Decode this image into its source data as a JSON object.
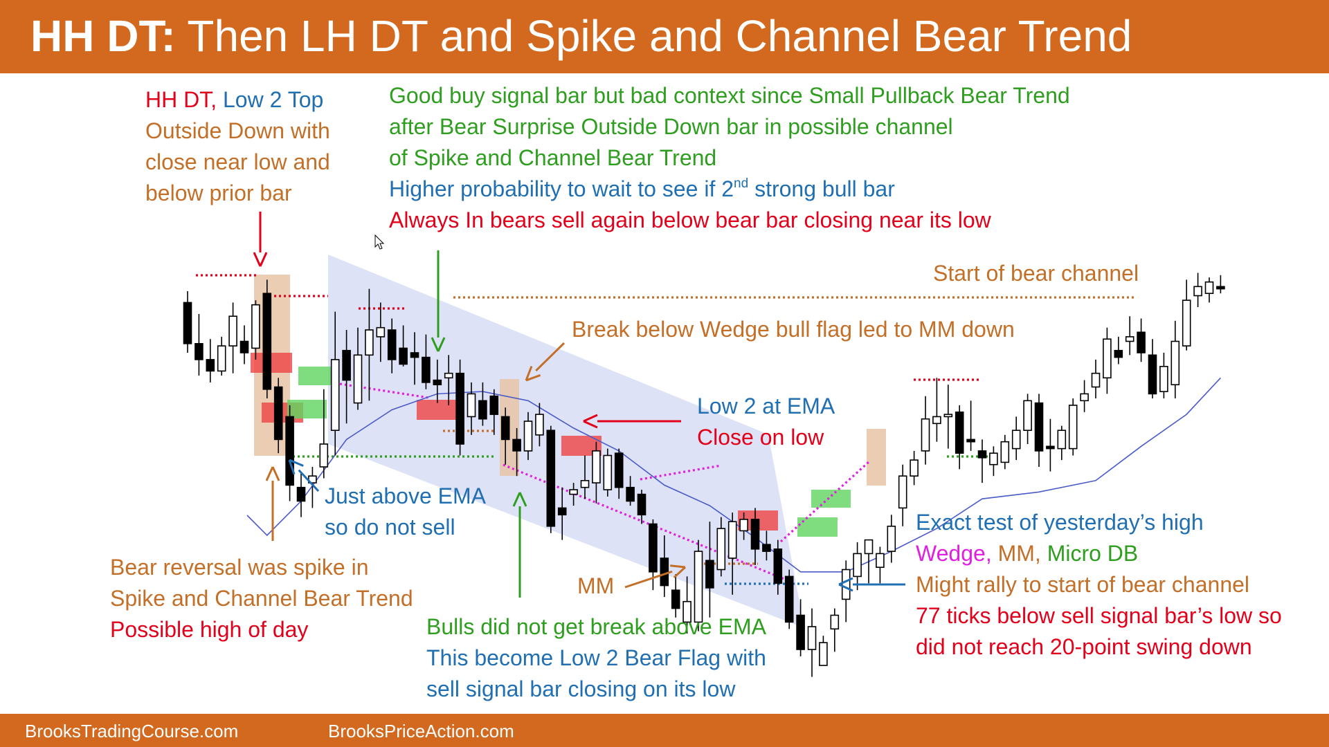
{
  "colors": {
    "header": "#D2691E",
    "footer": "#D2691E",
    "red": "#E3001B",
    "blue": "#1F6FB2",
    "green": "#2E9E1F",
    "orange": "#C46F27",
    "magenta": "#E020E0",
    "ema": "#4A5BC9",
    "channel_fill": "#C8CEF0",
    "bull_box": "#5FD45F",
    "bear_box": "#EE4444",
    "signal_box": "#E8C4A6"
  },
  "header": {
    "title_bold": "HH DT:",
    "title_rest": " Then LH DT and Spike and Channel Bear Trend"
  },
  "footer": {
    "left": "BrooksTradingCourse.com",
    "right": "BrooksPriceAction.com"
  },
  "annotations": {
    "hh_dt": {
      "part1": "HH DT, ",
      "part2": "Low 2 Top",
      "line2": "Outside Down with",
      "line3": "close near low and",
      "line4": "below prior bar"
    },
    "good_buy": {
      "line1": "Good buy signal bar but bad context since Small Pullback Bear Trend",
      "line2": "after Bear Surprise Outside Down bar in possible channel",
      "line3": "of Spike and Channel Bear Trend",
      "line4_pre": "Higher probability to wait to see if 2",
      "line4_sup": "nd",
      "line4_post": " strong bull bar",
      "line5": "Always In bears sell again below bear bar closing near its low"
    },
    "start_bear_channel": "Start of bear channel",
    "break_wedge": "Break below Wedge bull flag led to MM down",
    "low2_ema": {
      "line1": "Low 2 at EMA",
      "line2": "Close on low"
    },
    "just_above": {
      "line1": "Just above EMA",
      "line2": "so do not sell"
    },
    "bear_reversal": {
      "line1": "Bear reversal was spike in",
      "line2": "Spike and Channel Bear Trend",
      "line3": "Possible high of day"
    },
    "mm": "MM",
    "bulls_did_not": {
      "line1": "Bulls did not get break above EMA",
      "line2": "This become Low 2 Bear Flag with",
      "line3": "sell signal bar closing on its low"
    },
    "exact_test": {
      "line1": "Exact test of yesterday’s high",
      "line2a": "Wedge, ",
      "line2b": "MM, ",
      "line2c": "Micro DB",
      "line3": "Might rally to start of bear channel",
      "line4": "77 ticks below sell signal bar’s low so",
      "line5": "did not reach 20-point swing down"
    }
  },
  "chart_data": {
    "type": "candlestick",
    "description_series": "OHLC bars, price units arbitrary (higher value = higher price)",
    "bars": [
      {
        "o": 122,
        "h": 127,
        "l": 100,
        "c": 104
      },
      {
        "o": 104,
        "h": 117,
        "l": 90,
        "c": 97
      },
      {
        "o": 97,
        "h": 106,
        "l": 87,
        "c": 92
      },
      {
        "o": 92,
        "h": 107,
        "l": 90,
        "c": 103
      },
      {
        "o": 103,
        "h": 122,
        "l": 91,
        "c": 116
      },
      {
        "o": 105,
        "h": 112,
        "l": 95,
        "c": 100
      },
      {
        "o": 102,
        "h": 123,
        "l": 97,
        "c": 121
      },
      {
        "o": 126,
        "h": 132,
        "l": 80,
        "c": 84
      },
      {
        "o": 85,
        "h": 89,
        "l": 56,
        "c": 62
      },
      {
        "o": 72,
        "h": 77,
        "l": 35,
        "c": 42
      },
      {
        "o": 41,
        "h": 47,
        "l": 28,
        "c": 35
      },
      {
        "o": 43,
        "h": 50,
        "l": 32,
        "c": 46
      },
      {
        "o": 50,
        "h": 84,
        "l": 45,
        "c": 60
      },
      {
        "o": 66,
        "h": 118,
        "l": 55,
        "c": 97
      },
      {
        "o": 101,
        "h": 110,
        "l": 69,
        "c": 88
      },
      {
        "o": 78,
        "h": 111,
        "l": 75,
        "c": 99
      },
      {
        "o": 99,
        "h": 128,
        "l": 79,
        "c": 110
      },
      {
        "o": 107,
        "h": 122,
        "l": 96,
        "c": 111
      },
      {
        "o": 110,
        "h": 115,
        "l": 91,
        "c": 97
      },
      {
        "o": 102,
        "h": 112,
        "l": 94,
        "c": 95
      },
      {
        "o": 100,
        "h": 109,
        "l": 86,
        "c": 98
      },
      {
        "o": 98,
        "h": 108,
        "l": 84,
        "c": 87
      },
      {
        "o": 88,
        "h": 97,
        "l": 78,
        "c": 86
      },
      {
        "o": 89,
        "h": 99,
        "l": 77,
        "c": 91
      },
      {
        "o": 91,
        "h": 97,
        "l": 55,
        "c": 60
      },
      {
        "o": 72,
        "h": 87,
        "l": 64,
        "c": 82
      },
      {
        "o": 79,
        "h": 87,
        "l": 68,
        "c": 71
      },
      {
        "o": 81,
        "h": 84,
        "l": 64,
        "c": 73
      },
      {
        "o": 72,
        "h": 76,
        "l": 51,
        "c": 62
      },
      {
        "o": 62,
        "h": 67,
        "l": 46,
        "c": 57
      },
      {
        "o": 57,
        "h": 74,
        "l": 53,
        "c": 70
      },
      {
        "o": 64,
        "h": 78,
        "l": 59,
        "c": 73
      },
      {
        "o": 66,
        "h": 68,
        "l": 21,
        "c": 24
      },
      {
        "o": 32,
        "h": 41,
        "l": 18,
        "c": 29
      },
      {
        "o": 38,
        "h": 43,
        "l": 33,
        "c": 40
      },
      {
        "o": 41,
        "h": 55,
        "l": 36,
        "c": 44
      },
      {
        "o": 43,
        "h": 61,
        "l": 34,
        "c": 57
      },
      {
        "o": 40,
        "h": 58,
        "l": 37,
        "c": 55
      },
      {
        "o": 56,
        "h": 58,
        "l": 36,
        "c": 41
      },
      {
        "o": 41,
        "h": 46,
        "l": 33,
        "c": 35
      },
      {
        "o": 38,
        "h": 40,
        "l": 25,
        "c": 29
      },
      {
        "o": 25,
        "h": 27,
        "l": -4,
        "c": 4
      },
      {
        "o": 10,
        "h": 20,
        "l": -7,
        "c": -2
      },
      {
        "o": -4,
        "h": 3,
        "l": -16,
        "c": -12
      },
      {
        "o": -18,
        "h": 2,
        "l": -23,
        "c": -9
      },
      {
        "o": -18,
        "h": 18,
        "l": -22,
        "c": 13
      },
      {
        "o": 9,
        "h": 26,
        "l": -16,
        "c": -3
      },
      {
        "o": 5,
        "h": 28,
        "l": 2,
        "c": 23
      },
      {
        "o": 10,
        "h": 30,
        "l": -6,
        "c": 26
      },
      {
        "o": 22,
        "h": 30,
        "l": 18,
        "c": 27
      },
      {
        "o": 27,
        "h": 32,
        "l": 7,
        "c": 14
      },
      {
        "o": 16,
        "h": 22,
        "l": 9,
        "c": 13
      },
      {
        "o": 14,
        "h": 18,
        "l": -6,
        "c": -1
      },
      {
        "o": 2,
        "h": 5,
        "l": -21,
        "c": -18
      },
      {
        "o": -15,
        "h": -8,
        "l": -33,
        "c": -30
      },
      {
        "o": -30,
        "h": -12,
        "l": -42,
        "c": -20
      },
      {
        "o": -37,
        "h": -24,
        "l": -32,
        "c": -27
      },
      {
        "o": -21,
        "h": -12,
        "l": -31,
        "c": -15
      },
      {
        "o": -8,
        "h": 9,
        "l": -18,
        "c": 5
      },
      {
        "o": 2,
        "h": 17,
        "l": -4,
        "c": 12
      },
      {
        "o": 12,
        "h": 18,
        "l": -1,
        "c": 18
      },
      {
        "o": 6,
        "h": 15,
        "l": -1,
        "c": 12
      },
      {
        "o": 13,
        "h": 29,
        "l": 8,
        "c": 24
      },
      {
        "o": 32,
        "h": 51,
        "l": 24,
        "c": 46
      },
      {
        "o": 46,
        "h": 57,
        "l": 42,
        "c": 53
      },
      {
        "o": 57,
        "h": 81,
        "l": 51,
        "c": 71
      },
      {
        "o": 69,
        "h": 89,
        "l": 61,
        "c": 72
      },
      {
        "o": 72,
        "h": 86,
        "l": 58,
        "c": 73
      },
      {
        "o": 74,
        "h": 77,
        "l": 49,
        "c": 56
      },
      {
        "o": 62,
        "h": 79,
        "l": 57,
        "c": 61
      },
      {
        "o": 57,
        "h": 62,
        "l": 43,
        "c": 54
      },
      {
        "o": 51,
        "h": 59,
        "l": 46,
        "c": 56
      },
      {
        "o": 52,
        "h": 64,
        "l": 49,
        "c": 61
      },
      {
        "o": 58,
        "h": 72,
        "l": 53,
        "c": 66
      },
      {
        "o": 66,
        "h": 82,
        "l": 60,
        "c": 79
      },
      {
        "o": 78,
        "h": 82,
        "l": 50,
        "c": 57
      },
      {
        "o": 59,
        "h": 71,
        "l": 48,
        "c": 58
      },
      {
        "o": 58,
        "h": 68,
        "l": 53,
        "c": 66
      },
      {
        "o": 58,
        "h": 80,
        "l": 55,
        "c": 77
      },
      {
        "o": 79,
        "h": 88,
        "l": 74,
        "c": 82
      },
      {
        "o": 85,
        "h": 97,
        "l": 80,
        "c": 91
      },
      {
        "o": 89,
        "h": 111,
        "l": 82,
        "c": 106
      },
      {
        "o": 101,
        "h": 107,
        "l": 95,
        "c": 98
      },
      {
        "o": 105,
        "h": 116,
        "l": 99,
        "c": 107
      },
      {
        "o": 109,
        "h": 115,
        "l": 96,
        "c": 100
      },
      {
        "o": 99,
        "h": 106,
        "l": 80,
        "c": 82
      },
      {
        "o": 83,
        "h": 100,
        "l": 80,
        "c": 94
      },
      {
        "o": 86,
        "h": 114,
        "l": 80,
        "c": 105
      },
      {
        "o": 103,
        "h": 132,
        "l": 101,
        "c": 123
      },
      {
        "o": 125,
        "h": 135,
        "l": 120,
        "c": 129
      },
      {
        "o": 126,
        "h": 133,
        "l": 122,
        "c": 131
      },
      {
        "o": 129,
        "h": 134,
        "l": 126,
        "c": 128
      }
    ],
    "ema": [
      {
        "i": 7,
        "v": 20
      },
      {
        "i": 10,
        "v": 35
      },
      {
        "i": 14,
        "v": 62
      },
      {
        "i": 18,
        "v": 75
      },
      {
        "i": 22,
        "v": 82
      },
      {
        "i": 26,
        "v": 83
      },
      {
        "i": 30,
        "v": 79
      },
      {
        "i": 34,
        "v": 67
      },
      {
        "i": 38,
        "v": 57
      },
      {
        "i": 42,
        "v": 42
      },
      {
        "i": 46,
        "v": 33
      },
      {
        "i": 50,
        "v": 19
      },
      {
        "i": 54,
        "v": 4
      },
      {
        "i": 58,
        "v": 4
      },
      {
        "i": 62,
        "v": 13
      },
      {
        "i": 66,
        "v": 23
      },
      {
        "i": 70,
        "v": 36
      },
      {
        "i": 75,
        "v": 39
      },
      {
        "i": 80,
        "v": 44
      },
      {
        "i": 84,
        "v": 59
      },
      {
        "i": 88,
        "v": 73
      },
      {
        "i": 91,
        "v": 89
      }
    ]
  }
}
